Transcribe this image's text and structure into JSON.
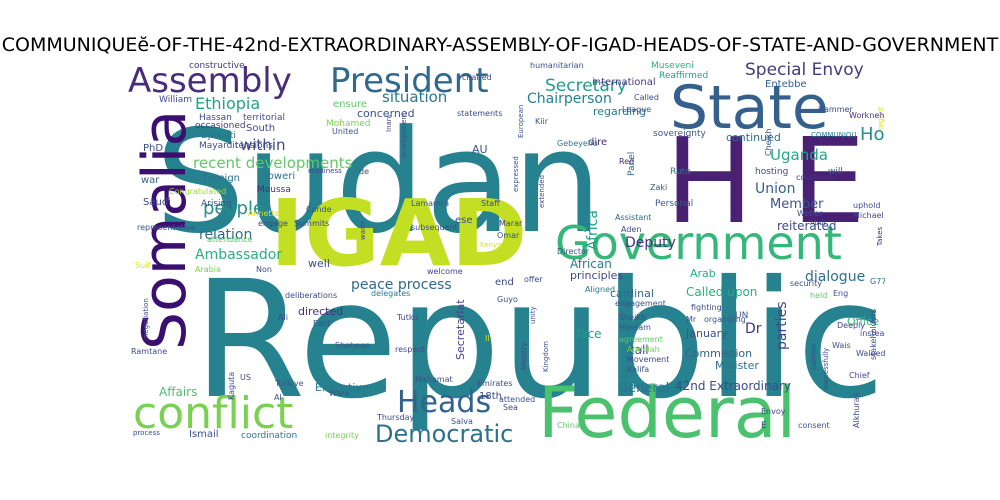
{
  "title": "COMMUNIQUEĕ-OF-THE-42nd-EXTRAORDINARY-ASSEMBLY-OF-IGAD-HEADS-OF-STATE-AND-GOVERNMENT",
  "words": [
    {
      "text": "Sudan",
      "color": "#26828e"
    },
    {
      "text": "Republic",
      "color": "#26828e"
    },
    {
      "text": "IGAD",
      "color": "#c2df23"
    },
    {
      "text": "H E",
      "color": "#482173"
    },
    {
      "text": "State",
      "color": "#355f8d"
    },
    {
      "text": "Federal",
      "color": "#4ac16d"
    },
    {
      "text": "Government",
      "color": "#35b779"
    },
    {
      "text": "Somalia",
      "color": "#3b0f70"
    },
    {
      "text": "conflict",
      "color": "#7ad151"
    },
    {
      "text": "Assembly",
      "color": "#472d7b"
    },
    {
      "text": "President",
      "color": "#31688e"
    },
    {
      "text": "Heads",
      "color": "#33638d"
    },
    {
      "text": "Democratic",
      "color": "#2c728e"
    },
    {
      "text": "Special Envoy",
      "color": "#443a83"
    },
    {
      "text": "Secretary",
      "color": "#1f9e89"
    },
    {
      "text": "Horn",
      "color": "#21918c"
    },
    {
      "text": "Chairperson",
      "color": "#26828e"
    },
    {
      "text": "Ethiopia",
      "color": "#20a486"
    },
    {
      "text": "situation",
      "color": "#2a788e"
    },
    {
      "text": "within",
      "color": "#3e4989"
    },
    {
      "text": "recent developments",
      "color": "#5ec962"
    },
    {
      "text": "Uganda",
      "color": "#22a884"
    },
    {
      "text": "people",
      "color": "#21918c"
    },
    {
      "text": "Union",
      "color": "#355f8d"
    },
    {
      "text": "Member",
      "color": "#39568c"
    },
    {
      "text": "relation",
      "color": "#31688e"
    },
    {
      "text": "Ambassador",
      "color": "#29af7f"
    },
    {
      "text": "Deputy",
      "color": "#46327e"
    },
    {
      "text": "Africa",
      "color": "#1f9e89"
    },
    {
      "text": "dialogue",
      "color": "#2d708e"
    },
    {
      "text": "reiterated",
      "color": "#3e4989"
    },
    {
      "text": "peace process",
      "color": "#31688e"
    },
    {
      "text": "parties",
      "color": "#404688"
    },
    {
      "text": "Called upon",
      "color": "#29af7f"
    },
    {
      "text": "42nd Extraordinary",
      "color": "#3e4989"
    },
    {
      "text": "General",
      "color": "#2c728e"
    },
    {
      "text": "Secretariat",
      "color": "#414487"
    },
    {
      "text": "Executive",
      "color": "#2a788e"
    },
    {
      "text": "Affairs",
      "color": "#4ac16d"
    },
    {
      "text": "Commission",
      "color": "#33638d"
    },
    {
      "text": "Minister",
      "color": "#2c728e"
    },
    {
      "text": "January",
      "color": "#3b528b"
    },
    {
      "text": "principles",
      "color": "#3e4989"
    },
    {
      "text": "cardinal",
      "color": "#31688e"
    },
    {
      "text": "dire",
      "color": "#472d7b"
    },
    {
      "text": "Dr",
      "color": "#46327e"
    },
    {
      "text": "call",
      "color": "#3b528b"
    },
    {
      "text": "face",
      "color": "#1f9e89"
    },
    {
      "text": "well",
      "color": "#3e4989"
    },
    {
      "text": "directed",
      "color": "#472d7b"
    },
    {
      "text": "Office",
      "color": "#35b779"
    },
    {
      "text": "Arab",
      "color": "#29af7f"
    },
    {
      "text": "AU",
      "color": "#3b528b"
    },
    {
      "text": "Ruto",
      "color": "#2c728e"
    },
    {
      "text": "Panel",
      "color": "#31688e"
    },
    {
      "text": "African",
      "color": "#2a788e"
    },
    {
      "text": "international",
      "color": "#443983"
    },
    {
      "text": "Museveni",
      "color": "#2ab07f"
    },
    {
      "text": "Reaffirmed",
      "color": "#20a486"
    },
    {
      "text": "Entebbe",
      "color": "#33638d"
    },
    {
      "text": "regarding",
      "color": "#2a788e"
    },
    {
      "text": "concerned",
      "color": "#3b528b"
    },
    {
      "text": "continued",
      "color": "#2d708e"
    },
    {
      "text": "South",
      "color": "#3e4989"
    },
    {
      "text": "Mohamed",
      "color": "#7ad151"
    },
    {
      "text": "ensure",
      "color": "#5ec962"
    },
    {
      "text": "PhD",
      "color": "#3e4989"
    },
    {
      "text": "war",
      "color": "#355f8d"
    },
    {
      "text": "Foreign",
      "color": "#2c728e"
    },
    {
      "text": "Yoweri",
      "color": "#2d708e"
    },
    {
      "text": "Saudi",
      "color": "#3e4989"
    },
    {
      "text": "Congratulated",
      "color": "#a0da39"
    },
    {
      "text": "Arising",
      "color": "#3b528b"
    },
    {
      "text": "Moussa",
      "color": "#472d7b"
    },
    {
      "text": "tensions",
      "color": "#3e4989"
    },
    {
      "text": "Djibouti",
      "color": "#2c728e"
    },
    {
      "text": "Mayardit",
      "color": "#3e4989"
    },
    {
      "text": "occasioned",
      "color": "#443983"
    },
    {
      "text": "Hassan",
      "color": "#3e4989"
    },
    {
      "text": "territorial",
      "color": "#3b528b"
    },
    {
      "text": "William",
      "color": "#3e4989"
    },
    {
      "text": "constructive",
      "color": "#443983"
    },
    {
      "text": "Gebeyehu",
      "color": "#2a788e"
    },
    {
      "text": "Kiir",
      "color": "#3b528b"
    },
    {
      "text": "hosting",
      "color": "#3e4989"
    },
    {
      "text": "courtesies",
      "color": "#46327e"
    },
    {
      "text": "sovereignty",
      "color": "#3b528b"
    },
    {
      "text": "Personal",
      "color": "#355f8d"
    },
    {
      "text": "Zaki",
      "color": "#3b528b"
    },
    {
      "text": "Red",
      "color": "#472d7b"
    },
    {
      "text": "will",
      "color": "#3b528b"
    },
    {
      "text": "Cheikh",
      "color": "#3b528b"
    },
    {
      "text": "Hammer",
      "color": "#3e4989"
    },
    {
      "text": "Workneh",
      "color": "#472d7b"
    },
    {
      "text": "COMMUNIQU",
      "color": "#26828e"
    },
    {
      "text": "regard",
      "color": "#d8e219"
    },
    {
      "text": "uphold",
      "color": "#3e4989"
    },
    {
      "text": "Michael",
      "color": "#3e4989"
    },
    {
      "text": "Weber",
      "color": "#3b528b"
    },
    {
      "text": "Takes",
      "color": "#482878"
    },
    {
      "text": "Marar",
      "color": "#3e4989"
    },
    {
      "text": "Omar",
      "color": "#3b528b"
    },
    {
      "text": "Aden",
      "color": "#3e4989"
    },
    {
      "text": "Assistant",
      "color": "#31688e"
    },
    {
      "text": "Director",
      "color": "#3b528b"
    },
    {
      "text": "Staff",
      "color": "#3e4989"
    },
    {
      "text": "Lamamra",
      "color": "#3b528b"
    },
    {
      "text": "subsequent",
      "color": "#3e4989"
    },
    {
      "text": "Conde",
      "color": "#3b528b"
    },
    {
      "text": "Summits",
      "color": "#3e4989"
    },
    {
      "text": "Annette",
      "color": "#d8e219"
    },
    {
      "text": "engage",
      "color": "#3e4989"
    },
    {
      "text": "attendance",
      "color": "#5ec962"
    },
    {
      "text": "representative",
      "color": "#3b528b"
    },
    {
      "text": "Non",
      "color": "#3e4989"
    },
    {
      "text": "Arabia",
      "color": "#7ad151"
    },
    {
      "text": "Suif",
      "color": "#d8e219"
    },
    {
      "text": "welcome",
      "color": "#3e4989"
    },
    {
      "text": "delegates",
      "color": "#2a788e"
    },
    {
      "text": "deliberations",
      "color": "#3e4989"
    },
    {
      "text": "Guyo",
      "color": "#3b528b"
    },
    {
      "text": "offer",
      "color": "#3e4989"
    },
    {
      "text": "Aligned",
      "color": "#2a788e"
    },
    {
      "text": "engagement",
      "color": "#3b528b"
    },
    {
      "text": "Sheikh",
      "color": "#3e4989"
    },
    {
      "text": "Hossam",
      "color": "#3b528b"
    },
    {
      "text": "Movement",
      "color": "#3e4989"
    },
    {
      "text": "agreement",
      "color": "#5ec962"
    },
    {
      "text": "Kalifa",
      "color": "#3b528b"
    },
    {
      "text": "fighting",
      "color": "#3e4989"
    },
    {
      "text": "organizing",
      "color": "#3b528b"
    },
    {
      "text": "instead",
      "color": "#3e4989"
    },
    {
      "text": "Deeply",
      "color": "#3e4989"
    },
    {
      "text": "Wais",
      "color": "#3b528b"
    },
    {
      "text": "Waleed",
      "color": "#3e4989"
    },
    {
      "text": "Chief",
      "color": "#3e4989"
    },
    {
      "text": "stakeholders",
      "color": "#3b528b"
    },
    {
      "text": "security",
      "color": "#3e4989"
    },
    {
      "text": "Eng",
      "color": "#3b528b"
    },
    {
      "text": "held",
      "color": "#5ec962"
    },
    {
      "text": "G77",
      "color": "#2a788e"
    },
    {
      "text": "Ali",
      "color": "#3e4989"
    },
    {
      "text": "East",
      "color": "#3b528b"
    },
    {
      "text": "Tutku",
      "color": "#3e4989"
    },
    {
      "text": "Shaheen",
      "color": "#3b528b"
    },
    {
      "text": "respect",
      "color": "#3e4989"
    },
    {
      "text": "Mahamat",
      "color": "#3b528b"
    },
    {
      "text": "Emirates",
      "color": "#3e4989"
    },
    {
      "text": "Salva",
      "color": "#3b528b"
    },
    {
      "text": "Sea",
      "color": "#3e4989"
    },
    {
      "text": "18th",
      "color": "#3e4989"
    },
    {
      "text": "attended",
      "color": "#3b528b"
    },
    {
      "text": "Thursday",
      "color": "#3e4989"
    },
    {
      "text": "Ware",
      "color": "#3b528b"
    },
    {
      "text": "Al",
      "color": "#3e4989"
    },
    {
      "text": "Turkiye",
      "color": "#3b528b"
    },
    {
      "text": "US",
      "color": "#3e4989"
    },
    {
      "text": "Ramtane",
      "color": "#3e4989"
    },
    {
      "text": "negotiation",
      "color": "#3b528b"
    },
    {
      "text": "Kaguta",
      "color": "#3e4989"
    },
    {
      "text": "Ismail",
      "color": "#3b528b"
    },
    {
      "text": "coordination",
      "color": "#2a788e"
    },
    {
      "text": "integrity",
      "color": "#7ad151"
    },
    {
      "text": "process",
      "color": "#3e4989"
    },
    {
      "text": "China",
      "color": "#5ec962"
    },
    {
      "text": "E",
      "color": "#3e4989"
    },
    {
      "text": "consent",
      "color": "#3b528b"
    },
    {
      "text": "Envoy",
      "color": "#3e4989"
    },
    {
      "text": "Alkhuraji",
      "color": "#3e4989"
    },
    {
      "text": "successfully",
      "color": "#3e4989"
    },
    {
      "text": "commit",
      "color": "#3e4989"
    },
    {
      "text": "humanitarian",
      "color": "#3b528b"
    },
    {
      "text": "chaired",
      "color": "#3e4989"
    },
    {
      "text": "statements",
      "color": "#3e4989"
    },
    {
      "text": "League",
      "color": "#3b528b"
    },
    {
      "text": "Called",
      "color": "#3e4989"
    },
    {
      "text": "expressed",
      "color": "#3b528b"
    },
    {
      "text": "extended",
      "color": "#3e4989"
    },
    {
      "text": "United",
      "color": "#3b528b"
    },
    {
      "text": "Inani",
      "color": "#3e4989"
    },
    {
      "text": "arrangement",
      "color": "#3b528b"
    },
    {
      "text": "readiness",
      "color": "#3e4989"
    },
    {
      "text": "UN",
      "color": "#3b528b"
    },
    {
      "text": "Mr",
      "color": "#3e4989"
    },
    {
      "text": "unity",
      "color": "#3b528b"
    },
    {
      "text": "Ministry",
      "color": "#3e4989"
    },
    {
      "text": "Kingdom",
      "color": "#3b528b"
    },
    {
      "text": "end",
      "color": "#3e4989"
    },
    {
      "text": "Kenya",
      "color": "#d8e219"
    },
    {
      "text": "Abdi",
      "color": "#3e4989"
    },
    {
      "text": "European",
      "color": "#3b528b"
    },
    {
      "text": "ese",
      "color": "#3e4989"
    },
    {
      "text": "de",
      "color": "#3b528b"
    },
    {
      "text": "warm",
      "color": "#3e4989"
    },
    {
      "text": "Abdelah",
      "color": "#7ad151"
    },
    {
      "text": "Il",
      "color": "#d8e219"
    }
  ]
}
